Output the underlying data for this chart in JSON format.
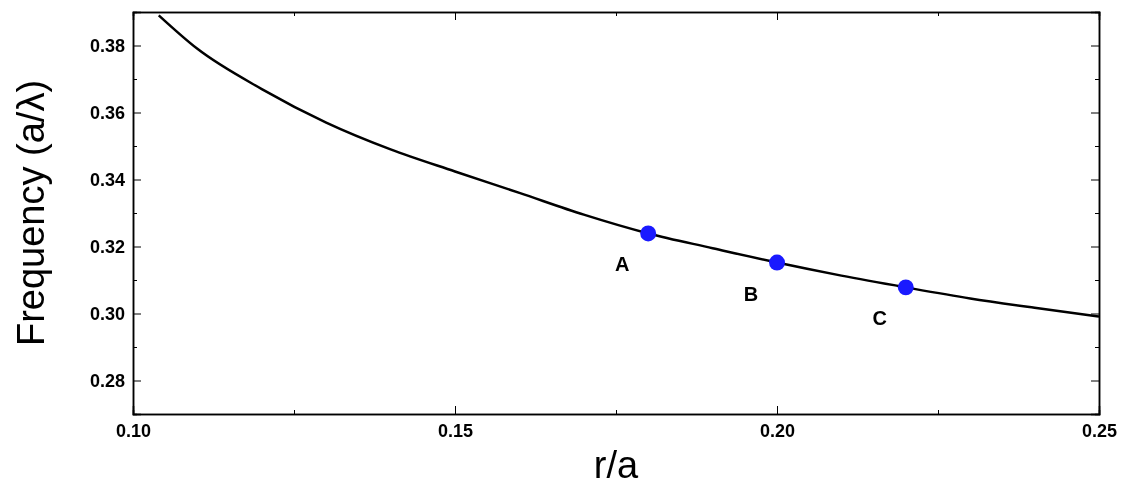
{
  "chart_data": {
    "type": "line",
    "xlabel": "r/a",
    "ylabel": "Frequency (a/λ)",
    "xlim": [
      0.1,
      0.25
    ],
    "ylim": [
      0.27,
      0.39
    ],
    "xticks": [
      {
        "value": 0.1,
        "label": "0.10"
      },
      {
        "value": 0.15,
        "label": "0.15"
      },
      {
        "value": 0.2,
        "label": "0.20"
      },
      {
        "value": 0.25,
        "label": "0.25"
      }
    ],
    "yticks": [
      {
        "value": 0.28,
        "label": "0.28"
      },
      {
        "value": 0.3,
        "label": "0.30"
      },
      {
        "value": 0.32,
        "label": "0.32"
      },
      {
        "value": 0.34,
        "label": "0.34"
      },
      {
        "value": 0.36,
        "label": "0.36"
      },
      {
        "value": 0.38,
        "label": "0.38"
      }
    ],
    "series": [
      {
        "color": "#000000",
        "x": [
          0.104,
          0.11,
          0.12,
          0.13,
          0.14,
          0.15,
          0.16,
          0.17,
          0.18,
          0.19,
          0.2,
          0.21,
          0.22,
          0.23,
          0.24,
          0.25
        ],
        "values": [
          0.389,
          0.379,
          0.367,
          0.357,
          0.349,
          0.3424,
          0.336,
          0.3295,
          0.3239,
          0.3195,
          0.3152,
          0.3113,
          0.3078,
          0.3045,
          0.3017,
          0.2991
        ]
      },
      {
        "type": "scatter",
        "color": "#1a1aff",
        "marker": "circle",
        "x": [
          0.18,
          0.2,
          0.22
        ],
        "values": [
          0.3239,
          0.3152,
          0.3078
        ]
      }
    ],
    "annotations": [
      {
        "text": "A",
        "x": 0.18,
        "y": 0.3239
      },
      {
        "text": "B",
        "x": 0.2,
        "y": 0.3152
      },
      {
        "text": "C",
        "x": 0.22,
        "y": 0.3078
      }
    ],
    "grid": false
  }
}
